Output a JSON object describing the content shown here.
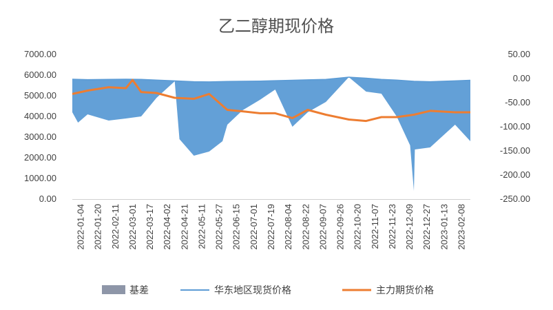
{
  "chart_data": {
    "type": "area",
    "title": "乙二醇期现价格",
    "legend": [
      {
        "name": "基差",
        "color": "#8E96A8",
        "kind": "area"
      },
      {
        "name": "华东地区现货价格",
        "color": "#5B9BD5",
        "kind": "line"
      },
      {
        "name": "主力期货价格",
        "color": "#ED7D31",
        "kind": "line"
      }
    ],
    "legend_position": "bottom",
    "grid": false,
    "y_left": {
      "min": 0,
      "max": 7000,
      "ticks": [
        "7000.00",
        "6000.00",
        "5000.00",
        "4000.00",
        "3000.00",
        "2000.00",
        "1000.00",
        "0.00"
      ]
    },
    "y_right": {
      "min": -250,
      "max": 50,
      "ticks": [
        "50.00",
        "0.00",
        "-50.00",
        "-100.00",
        "-150.00",
        "-200.00",
        "-250.00"
      ]
    },
    "x_labels": [
      "2022-01-04",
      "2022-01-20",
      "2022-02-11",
      "2022-03-01",
      "2022-03-17",
      "2022-04-02",
      "2022-04-21",
      "2022-05-11",
      "2022-05-27",
      "2022-06-15",
      "2022-07-01",
      "2022-07-19",
      "2022-08-04",
      "2022-08-22",
      "2022-09-07",
      "2022-09-26",
      "2022-10-20",
      "2022-11-07",
      "2022-11-23",
      "2022-12-09",
      "2022-12-27",
      "2023-01-13",
      "2023-02-08"
    ],
    "series": [
      {
        "name": "主力期货价格",
        "axis": "right",
        "dates": [
          "2022-01-04",
          "2022-01-20",
          "2022-02-11",
          "2022-03-01",
          "2022-03-08",
          "2022-03-17",
          "2022-04-02",
          "2022-04-21",
          "2022-05-11",
          "2022-05-27",
          "2022-06-15",
          "2022-07-01",
          "2022-07-19",
          "2022-08-04",
          "2022-08-22",
          "2022-09-07",
          "2022-09-26",
          "2022-10-20",
          "2022-11-07",
          "2022-11-23",
          "2022-12-09",
          "2022-12-27",
          "2023-01-13",
          "2023-02-08",
          "2023-02-24"
        ],
        "values": [
          -32,
          -25,
          -18,
          -20,
          -3,
          -28,
          -30,
          -40,
          -42,
          -32,
          -65,
          -68,
          -72,
          -72,
          -82,
          -65,
          -75,
          -85,
          -88,
          -80,
          -80,
          -75,
          -67,
          -70,
          -70
        ]
      },
      {
        "name": "华东地区现货价格",
        "axis": "left",
        "dates": [
          "2022-01-04",
          "2022-01-20",
          "2022-02-11",
          "2022-03-01",
          "2022-03-17",
          "2022-04-02",
          "2022-04-21",
          "2022-05-11",
          "2022-05-27",
          "2022-06-15",
          "2022-07-01",
          "2022-07-19",
          "2022-08-04",
          "2022-08-22",
          "2022-09-07",
          "2022-09-26",
          "2022-10-20",
          "2022-11-07",
          "2022-11-23",
          "2022-12-09",
          "2022-12-27",
          "2023-01-13",
          "2023-02-08",
          "2023-02-24"
        ],
        "values": [
          5800,
          5780,
          5790,
          5800,
          5790,
          5760,
          5720,
          5680,
          5670,
          5690,
          5700,
          5710,
          5730,
          5750,
          5770,
          5790,
          5900,
          5850,
          5790,
          5760,
          5700,
          5680,
          5720,
          5750
        ]
      },
      {
        "name": "基差",
        "axis": "left",
        "dates": [
          "2022-01-04",
          "2022-01-10",
          "2022-01-20",
          "2022-02-11",
          "2022-03-01",
          "2022-03-17",
          "2022-04-02",
          "2022-04-21",
          "2022-04-26",
          "2022-05-11",
          "2022-05-27",
          "2022-06-10",
          "2022-06-15",
          "2022-07-01",
          "2022-07-19",
          "2022-08-04",
          "2022-08-22",
          "2022-09-07",
          "2022-09-26",
          "2022-10-20",
          "2022-11-07",
          "2022-11-23",
          "2022-12-09",
          "2022-12-23",
          "2022-12-27",
          "2022-12-28",
          "2023-01-13",
          "2023-02-08",
          "2023-02-24"
        ],
        "values": [
          4200,
          3700,
          4100,
          3800,
          3900,
          4000,
          4900,
          5700,
          2900,
          2100,
          2300,
          2800,
          3600,
          4300,
          4800,
          5300,
          3500,
          4200,
          4700,
          5900,
          5200,
          5100,
          4000,
          2600,
          400,
          2400,
          2500,
          3600,
          2800
        ]
      }
    ]
  }
}
